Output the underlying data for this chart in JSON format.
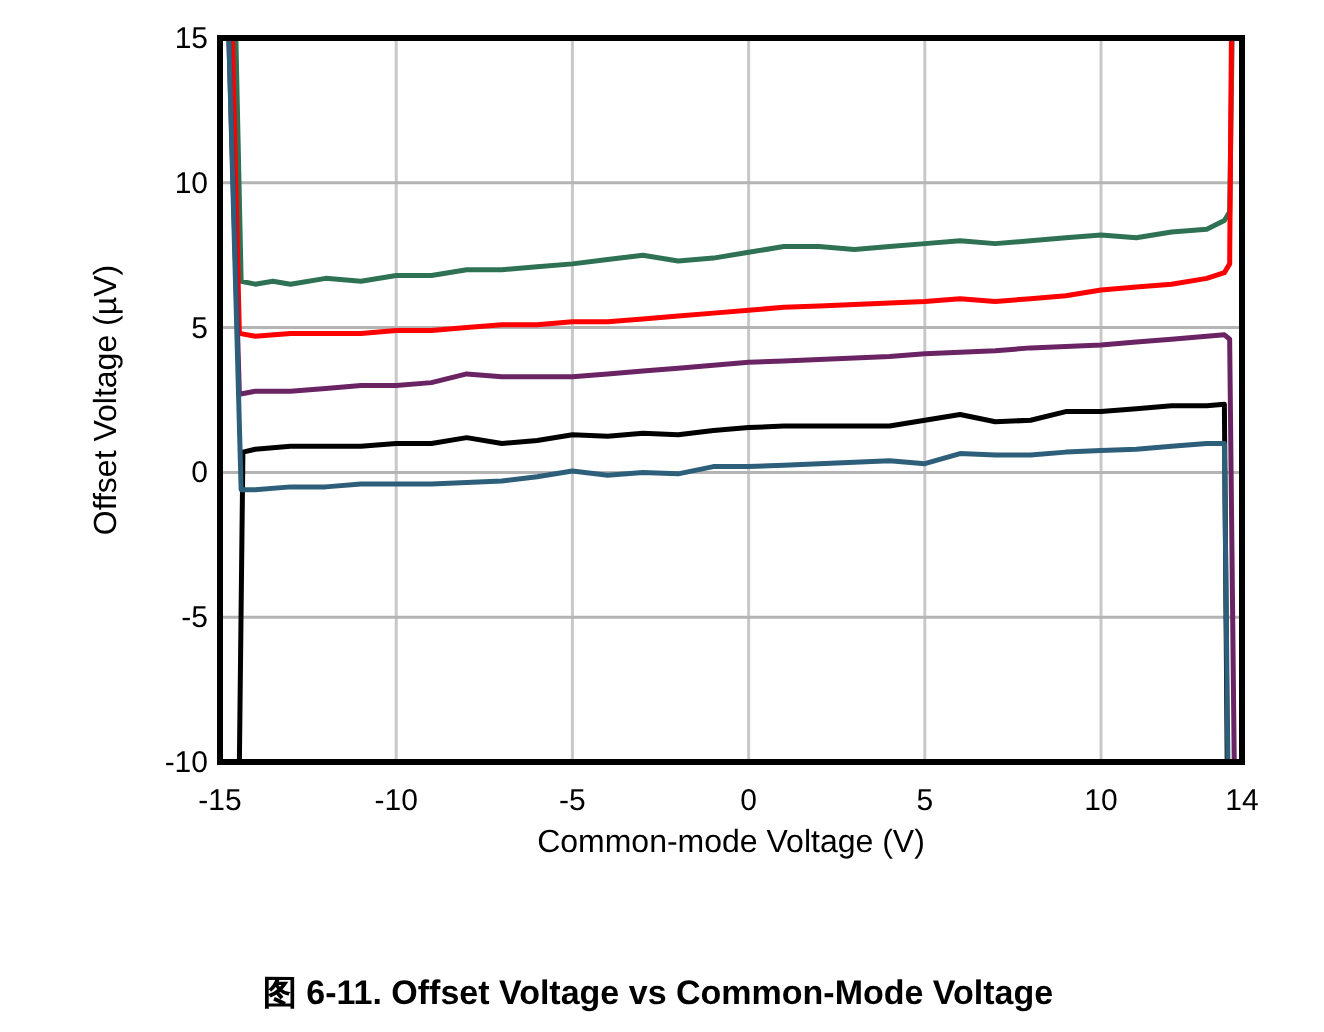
{
  "chart_data": {
    "type": "line",
    "title": "图 6-11. Offset Voltage vs Common-Mode Voltage",
    "xlabel": "Common-mode Voltage (V)",
    "ylabel": "Offset Voltage (µV)",
    "xlim": [
      -15,
      14
    ],
    "xticks": [
      -15,
      -10,
      -5,
      0,
      5,
      10,
      14
    ],
    "ylim": [
      -10,
      15
    ],
    "yticks": [
      -10,
      -5,
      0,
      5,
      10,
      15
    ],
    "grid": true,
    "marker": "none",
    "line_style": "solid",
    "series": [
      {
        "color": "#2e7153",
        "x": [
          -14.55,
          -14.4,
          -14.0,
          -13.5,
          -13,
          -12,
          -11,
          -10,
          -9,
          -8,
          -7,
          -6,
          -5,
          -4,
          -3,
          -2,
          -1,
          0,
          1,
          2,
          3,
          4,
          5,
          6,
          7,
          8,
          9,
          10,
          11,
          12,
          13,
          13.5,
          13.65,
          13.72
        ],
        "values": [
          15,
          6.6,
          6.5,
          6.6,
          6.5,
          6.7,
          6.6,
          6.8,
          6.8,
          7.0,
          7.0,
          7.1,
          7.2,
          7.35,
          7.5,
          7.3,
          7.4,
          7.6,
          7.8,
          7.8,
          7.7,
          7.8,
          7.9,
          8.0,
          7.9,
          8.0,
          8.1,
          8.2,
          8.1,
          8.3,
          8.4,
          8.7,
          9.0,
          15
        ]
      },
      {
        "color": "#ff0000",
        "x": [
          -14.65,
          -14.45,
          -14,
          -13,
          -12,
          -11,
          -10,
          -9,
          -8,
          -7,
          -6,
          -5,
          -4,
          -3,
          -2,
          -1,
          0,
          1,
          2,
          3,
          4,
          5,
          6,
          7,
          8,
          9,
          10,
          11,
          12,
          13,
          13.5,
          13.65,
          13.7
        ],
        "values": [
          15,
          4.8,
          4.7,
          4.8,
          4.8,
          4.8,
          4.9,
          4.9,
          5.0,
          5.1,
          5.1,
          5.2,
          5.2,
          5.3,
          5.4,
          5.5,
          5.6,
          5.7,
          5.75,
          5.8,
          5.85,
          5.9,
          6.0,
          5.9,
          6.0,
          6.1,
          6.3,
          6.4,
          6.5,
          6.7,
          6.9,
          7.2,
          15
        ]
      },
      {
        "color": "#6a2463",
        "x": [
          -14.75,
          -14.45,
          -14,
          -13,
          -12,
          -11,
          -10,
          -9,
          -8,
          -7,
          -6,
          -5,
          -4,
          -3,
          -2,
          -1,
          0,
          1,
          2,
          3,
          4,
          5,
          6,
          7,
          8,
          9,
          10,
          11,
          12,
          13,
          13.5,
          13.65,
          13.78
        ],
        "values": [
          15,
          2.7,
          2.8,
          2.8,
          2.9,
          3.0,
          3.0,
          3.1,
          3.4,
          3.3,
          3.3,
          3.3,
          3.4,
          3.5,
          3.6,
          3.7,
          3.8,
          3.85,
          3.9,
          3.95,
          4.0,
          4.1,
          4.15,
          4.2,
          4.3,
          4.35,
          4.4,
          4.5,
          4.6,
          4.7,
          4.75,
          4.6,
          -10
        ]
      },
      {
        "color": "#000000",
        "x": [
          -14.45,
          -14.35,
          -14,
          -13,
          -12,
          -11,
          -10,
          -9,
          -8,
          -7,
          -6,
          -5,
          -4,
          -3,
          -2,
          -1,
          0,
          1,
          2,
          3,
          4,
          5,
          6,
          7,
          8,
          9,
          10,
          11,
          12,
          13,
          13.5,
          13.58
        ],
        "values": [
          -10,
          0.7,
          0.8,
          0.9,
          0.9,
          0.9,
          1.0,
          1.0,
          1.2,
          1.0,
          1.1,
          1.3,
          1.25,
          1.35,
          1.3,
          1.45,
          1.55,
          1.6,
          1.6,
          1.6,
          1.6,
          1.8,
          2.0,
          1.75,
          1.8,
          2.1,
          2.1,
          2.2,
          2.3,
          2.3,
          2.35,
          -10
        ]
      },
      {
        "color": "#2d5f7a",
        "x": [
          -14.75,
          -14.4,
          -14,
          -13,
          -12,
          -11,
          -10,
          -9,
          -8,
          -7,
          -6,
          -5,
          -4,
          -3,
          -2,
          -1,
          0,
          1,
          2,
          3,
          4,
          5,
          6,
          7,
          8,
          9,
          10,
          11,
          12,
          13,
          13.5,
          13.6
        ],
        "values": [
          15,
          -0.6,
          -0.6,
          -0.5,
          -0.5,
          -0.4,
          -0.4,
          -0.4,
          -0.35,
          -0.3,
          -0.15,
          0.05,
          -0.1,
          0.0,
          -0.05,
          0.2,
          0.2,
          0.25,
          0.3,
          0.35,
          0.4,
          0.3,
          0.65,
          0.6,
          0.6,
          0.7,
          0.76,
          0.8,
          0.9,
          1.0,
          1.0,
          -10
        ]
      }
    ]
  }
}
